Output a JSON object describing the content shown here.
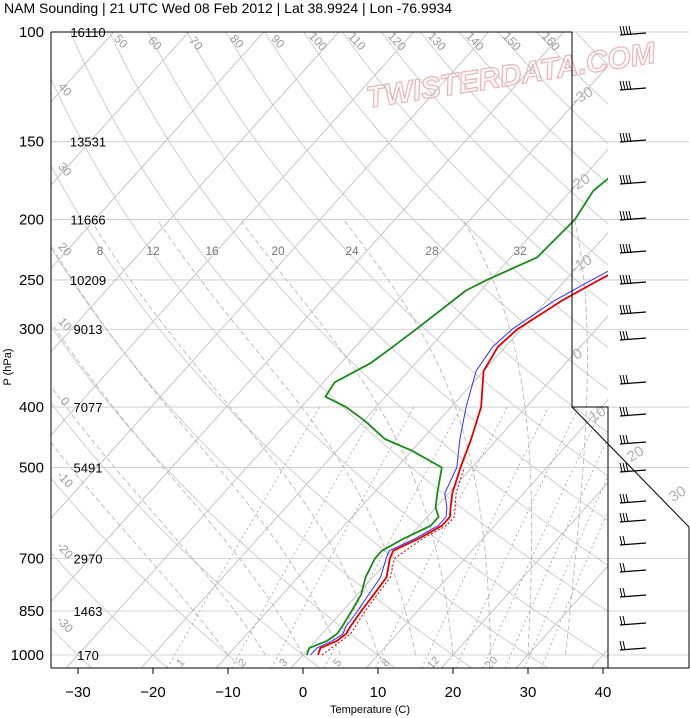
{
  "chart_data": {
    "type": "line",
    "title": "NAM Sounding | 21 UTC Wed 08 Feb 2012 | Lat 38.9924 | Lon -76.9934",
    "xlabel": "Temperature (C)",
    "ylabel": "P (hPa)",
    "x_ticks": [
      -30,
      -20,
      -10,
      0,
      10,
      20,
      30,
      40
    ],
    "pressure_ticks": [
      100,
      150,
      200,
      250,
      300,
      400,
      500,
      700,
      850,
      1000
    ],
    "heights": [
      "16110",
      "13531",
      "11666",
      "10209",
      "9013",
      "7077",
      "5491",
      "2970",
      "1463",
      "170"
    ],
    "isotherm_labels": [
      "50",
      "60",
      "70",
      "80",
      "90",
      "100",
      "110",
      "120",
      "130",
      "140",
      "150",
      "160",
      "40",
      "30",
      "20",
      "10",
      "0",
      "-10",
      "-20",
      "-30"
    ],
    "dry_adiabat_labels": [
      "-30",
      "-20",
      "-10",
      "0",
      "10",
      "20",
      "30"
    ],
    "mixing_ratio_top_labels": [
      "8",
      "12",
      "16",
      "20",
      "24",
      "28",
      "32"
    ],
    "mixing_ratio_bottom_labels": [
      "1",
      "2",
      "3",
      "5",
      "8",
      "12",
      "20"
    ],
    "watermark": "TWISTERDATA.COM",
    "series": [
      {
        "values": [
          [
            1000,
            2
          ],
          [
            975,
            1.5
          ],
          [
            950,
            2.8
          ],
          [
            925,
            3.2
          ],
          [
            900,
            2.9
          ],
          [
            850,
            2.5
          ],
          [
            800,
            2.2
          ],
          [
            750,
            1.8
          ],
          [
            700,
            0
          ],
          [
            680,
            -0.5
          ],
          [
            650,
            1.5
          ],
          [
            620,
            3
          ],
          [
            600,
            3
          ],
          [
            580,
            2
          ],
          [
            550,
            0.5
          ],
          [
            500,
            -1.5
          ],
          [
            450,
            -3.5
          ],
          [
            400,
            -6
          ],
          [
            350,
            -10
          ],
          [
            320,
            -11
          ],
          [
            300,
            -10.5
          ],
          [
            270,
            -8
          ],
          [
            250,
            -5.5
          ],
          [
            200,
            2.5
          ],
          [
            150,
            9.5
          ],
          [
            125,
            13.5
          ],
          [
            100,
            15.5
          ]
        ]
      },
      {
        "values": [
          [
            1000,
            1
          ],
          [
            975,
            1
          ],
          [
            950,
            2.2
          ],
          [
            925,
            2.8
          ],
          [
            900,
            2.3
          ],
          [
            850,
            2
          ],
          [
            800,
            1.5
          ],
          [
            750,
            1
          ],
          [
            700,
            -0.5
          ],
          [
            680,
            -1
          ],
          [
            650,
            1
          ],
          [
            620,
            2.5
          ],
          [
            600,
            2.5
          ],
          [
            580,
            1.5
          ],
          [
            550,
            -0.5
          ],
          [
            500,
            -2
          ],
          [
            450,
            -5
          ],
          [
            400,
            -8
          ],
          [
            350,
            -11
          ],
          [
            320,
            -11.7
          ],
          [
            300,
            -11.2
          ],
          [
            270,
            -9
          ],
          [
            250,
            -6.5
          ],
          [
            200,
            1.5
          ],
          [
            150,
            8.5
          ],
          [
            125,
            12.5
          ],
          [
            100,
            14.5
          ]
        ]
      },
      {
        "values": [
          [
            1000,
            0.5
          ],
          [
            975,
            0
          ],
          [
            950,
            1.5
          ],
          [
            925,
            2
          ],
          [
            900,
            1.8
          ],
          [
            850,
            1.2
          ],
          [
            800,
            0.5
          ],
          [
            750,
            -1
          ],
          [
            700,
            -2
          ],
          [
            680,
            -2
          ],
          [
            650,
            -0.5
          ],
          [
            620,
            1.5
          ],
          [
            600,
            1.5
          ],
          [
            580,
            0
          ],
          [
            550,
            -1.5
          ],
          [
            500,
            -4
          ],
          [
            470,
            -10
          ],
          [
            450,
            -15
          ],
          [
            420,
            -20
          ],
          [
            400,
            -24
          ],
          [
            385,
            -28
          ],
          [
            365,
            -28.5
          ],
          [
            340,
            -26
          ],
          [
            320,
            -25
          ],
          [
            300,
            -24
          ],
          [
            260,
            -22
          ],
          [
            250,
            -20.5
          ],
          [
            230,
            -16.5
          ],
          [
            200,
            -16
          ],
          [
            180,
            -17
          ],
          [
            150,
            -15
          ],
          [
            120,
            -14
          ],
          [
            100,
            -14
          ]
        ]
      }
    ]
  }
}
